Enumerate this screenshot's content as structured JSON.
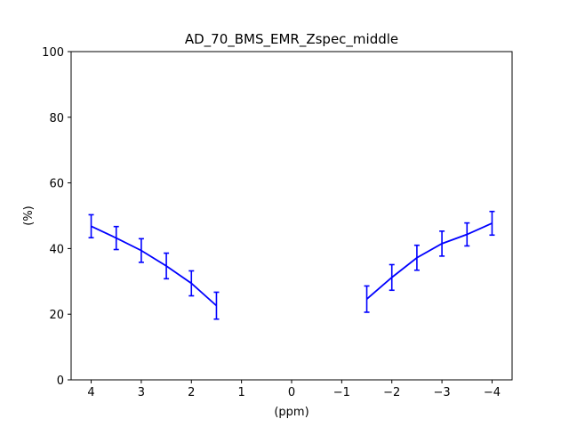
{
  "chart_data": {
    "type": "line",
    "title": "AD_70_BMS_EMR_Zspec_middle",
    "xlabel": "(ppm)",
    "ylabel": "(%)",
    "xlim": [
      4.4,
      -4.4
    ],
    "ylim": [
      0,
      100
    ],
    "x_axis_inverted": true,
    "x_ticks": [
      4,
      3,
      2,
      1,
      0,
      -1,
      -2,
      -3,
      -4
    ],
    "x_tick_labels": [
      "4",
      "3",
      "2",
      "1",
      "0",
      "−1",
      "−2",
      "−3",
      "−4"
    ],
    "y_ticks": [
      0,
      20,
      40,
      60,
      80,
      100
    ],
    "y_tick_labels": [
      "0",
      "20",
      "40",
      "60",
      "80",
      "100"
    ],
    "grid": false,
    "series": [
      {
        "color": "#0000ff",
        "segments": [
          {
            "x": [
              4,
              3.5,
              3,
              2.5,
              2,
              1.5
            ],
            "y": [
              46.8,
              43.2,
              39.4,
              34.7,
              29.4,
              22.6
            ],
            "yerr": [
              3.5,
              3.5,
              3.6,
              3.9,
              3.8,
              4.1
            ]
          },
          {
            "x": [
              -1.5,
              -2,
              -2.5,
              -3,
              -3.5,
              -4
            ],
            "y": [
              24.6,
              31.2,
              37.2,
              41.5,
              44.3,
              47.7
            ],
            "yerr": [
              4.0,
              3.9,
              3.8,
              3.8,
              3.5,
              3.6
            ]
          }
        ]
      }
    ]
  }
}
